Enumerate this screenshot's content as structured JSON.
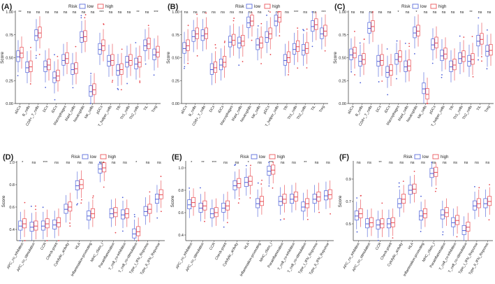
{
  "colors": {
    "low": "#4a5ed8",
    "high": "#e8444a",
    "axis": "#333333",
    "text": "#222222"
  },
  "legend": {
    "title": "Risk",
    "low_label": "low",
    "high_label": "high"
  },
  "chart_data": [
    {
      "panel": "(A)",
      "type": "box",
      "ylabel": "Score",
      "ylim": [
        0,
        1
      ],
      "yticks": [
        "0.00",
        "0.25",
        "0.50",
        "0.75",
        "1.00"
      ],
      "categories": [
        "aDCs",
        "B_cells",
        "CD8+_T_cells",
        "DCs",
        "iDCs",
        "Macrophages",
        "Mast_cells",
        "Neutrophils",
        "NK_cells",
        "pDCs",
        "T_helper_cells",
        "Tfh",
        "Th1_cells",
        "Th2_cells",
        "TIL",
        "Treg"
      ],
      "significance": [
        "**",
        "ns",
        "ns",
        "ns",
        "ns",
        "ns",
        "ns",
        "ns",
        "ns",
        "***",
        "ns",
        "ns",
        "ns",
        "**",
        "ns",
        "***"
      ],
      "series": [
        {
          "name": "low",
          "medians": [
            0.51,
            0.39,
            0.74,
            0.4,
            0.28,
            0.47,
            0.37,
            0.72,
            0.13,
            0.59,
            0.46,
            0.36,
            0.45,
            0.43,
            0.63,
            0.53
          ]
        },
        {
          "name": "high",
          "medians": [
            0.55,
            0.4,
            0.77,
            0.42,
            0.3,
            0.49,
            0.38,
            0.73,
            0.15,
            0.63,
            0.47,
            0.37,
            0.47,
            0.45,
            0.65,
            0.56
          ]
        }
      ]
    },
    {
      "panel": "(B)",
      "type": "box",
      "ylabel": "Score",
      "ylim": [
        0,
        1
      ],
      "yticks": [
        "0.00",
        "0.25",
        "0.50",
        "0.75",
        "1.00"
      ],
      "categories": [
        "aDCs",
        "B_cells",
        "CD8+_T_cells",
        "DCs",
        "iDCs",
        "Macrophages",
        "Mast_cells",
        "Neutrophils",
        "NK_cells",
        "pDCs",
        "T_helper_cells",
        "Tfh",
        "Th1_cells",
        "Th2_cells",
        "TIL",
        "Treg"
      ],
      "significance": [
        "ns",
        "ns",
        "ns",
        "ns",
        "ns",
        "ns",
        "ns",
        "ns",
        "ns",
        "*",
        "ns",
        "ns",
        "***",
        "ns",
        "ns",
        "***"
      ],
      "series": [
        {
          "name": "low",
          "medians": [
            0.6,
            0.73,
            0.74,
            0.37,
            0.42,
            0.67,
            0.66,
            0.88,
            0.64,
            0.72,
            0.9,
            0.47,
            0.59,
            0.58,
            0.84,
            0.76
          ]
        },
        {
          "name": "high",
          "medians": [
            0.63,
            0.76,
            0.76,
            0.39,
            0.45,
            0.69,
            0.68,
            0.9,
            0.66,
            0.76,
            0.94,
            0.5,
            0.62,
            0.6,
            0.86,
            0.79
          ]
        }
      ]
    },
    {
      "panel": "(C)",
      "type": "box",
      "ylabel": "Score",
      "ylim": [
        0,
        1
      ],
      "yticks": [
        "0.00",
        "0.25",
        "0.50",
        "0.75",
        "1.00"
      ],
      "categories": [
        "aDCs",
        "B_cells",
        "CD8+_T_cells",
        "DCs",
        "iDCs",
        "Macrophages",
        "Mast_cells",
        "Neutrophils",
        "NK_cells",
        "pDCs",
        "T_helper_cells",
        "Tfh",
        "Th1_cells",
        "Th2_cells",
        "TIL",
        "Treg"
      ],
      "significance": [
        "ns",
        "ns",
        "ns",
        "ns",
        "ns",
        "*",
        "ns",
        "*",
        "ns",
        "ns",
        "ns",
        "ns",
        "ns",
        "**",
        "ns",
        "ns"
      ],
      "series": [
        {
          "name": "low",
          "medians": [
            0.53,
            0.46,
            0.82,
            0.46,
            0.34,
            0.48,
            0.4,
            0.77,
            0.16,
            0.64,
            0.52,
            0.4,
            0.49,
            0.46,
            0.68,
            0.57
          ]
        },
        {
          "name": "high",
          "medians": [
            0.55,
            0.48,
            0.84,
            0.47,
            0.36,
            0.51,
            0.41,
            0.79,
            0.1,
            0.66,
            0.54,
            0.42,
            0.51,
            0.48,
            0.7,
            0.58
          ]
        }
      ]
    },
    {
      "panel": "(D)",
      "type": "box",
      "ylabel": "Score",
      "ylim": [
        0.3,
        1.0
      ],
      "yticks": [
        "0.4",
        "0.6",
        "0.8",
        "1.0"
      ],
      "categories": [
        "APC_co_inhibition",
        "APC_co_stimulation",
        "CCR",
        "Check-point",
        "Cytolytic_activity",
        "HLA",
        "Inflammation-promoting",
        "MHC_class_I",
        "Parainflammation",
        "T_cell_co-inhibition",
        "T_cell_co-stimulation",
        "Type_I_IFN_Reponse",
        "Type_II_IFN_Reponse"
      ],
      "significance": [
        "*",
        "ns",
        "***",
        "ns",
        "ns",
        "ns",
        "ns",
        "ns",
        "ns",
        "ns",
        "*",
        "ns",
        "ns"
      ],
      "series": [
        {
          "name": "low",
          "medians": [
            0.43,
            0.42,
            0.43,
            0.44,
            0.58,
            0.79,
            0.52,
            0.94,
            0.54,
            0.53,
            0.36,
            0.56,
            0.67
          ]
        },
        {
          "name": "high",
          "medians": [
            0.45,
            0.43,
            0.45,
            0.46,
            0.6,
            0.8,
            0.54,
            0.95,
            0.55,
            0.54,
            0.38,
            0.58,
            0.71
          ]
        }
      ]
    },
    {
      "panel": "(E)",
      "type": "box",
      "ylabel": "Score",
      "ylim": [
        0.35,
        1.05
      ],
      "yticks": [
        "0.4",
        "0.6",
        "0.8",
        "1.0"
      ],
      "categories": [
        "APC_co_inhibition",
        "APC_co_stimulation",
        "CCR",
        "Check-point",
        "Cytolytic_activity",
        "HLA",
        "Inflammation-promoting",
        "MHC_class_I",
        "Parainflammation",
        "T_cell_co-inhibition",
        "T_cell_co-stimulation",
        "Type_I_IFN_Reponse",
        "Type_II_IFN_Reponse"
      ],
      "significance": [
        "*",
        "**",
        "***",
        "ns",
        "ns",
        "*",
        "ns",
        "***",
        "ns",
        "ns",
        "**",
        "ns",
        "ns"
      ],
      "series": [
        {
          "name": "low",
          "medians": [
            0.67,
            0.64,
            0.59,
            0.64,
            0.84,
            0.87,
            0.68,
            0.97,
            0.7,
            0.72,
            0.65,
            0.72,
            0.75
          ]
        },
        {
          "name": "high",
          "medians": [
            0.69,
            0.66,
            0.6,
            0.66,
            0.86,
            0.88,
            0.7,
            0.98,
            0.72,
            0.74,
            0.68,
            0.74,
            0.76
          ]
        }
      ]
    },
    {
      "panel": "(F)",
      "type": "box",
      "ylabel": "Score",
      "ylim": [
        0.35,
        1.05
      ],
      "yticks": [
        "0.5",
        "0.7",
        "0.9"
      ],
      "categories": [
        "APC_co_inhibition",
        "APC_co_stimulation",
        "CCR",
        "Check-point",
        "Cytolytic_activity",
        "HLA",
        "Inflammation-promoting",
        "MHC_class_I",
        "Parainflammation",
        "T_cell_co-inhibition",
        "T_cell_co-stimulation",
        "Type_I_IFN_Reponse",
        "Type_II_IFN_Reponse"
      ],
      "significance": [
        "ns",
        "ns",
        "**",
        "ns",
        "ns",
        "ns",
        "ns",
        "ns",
        "ns",
        "ns",
        "ns",
        "ns",
        "ns"
      ],
      "series": [
        {
          "name": "low",
          "medians": [
            0.57,
            0.5,
            0.49,
            0.5,
            0.68,
            0.8,
            0.57,
            0.95,
            0.58,
            0.51,
            0.44,
            0.66,
            0.68
          ]
        },
        {
          "name": "high",
          "medians": [
            0.59,
            0.51,
            0.5,
            0.51,
            0.72,
            0.81,
            0.59,
            0.96,
            0.6,
            0.53,
            0.47,
            0.68,
            0.7
          ]
        }
      ]
    }
  ]
}
